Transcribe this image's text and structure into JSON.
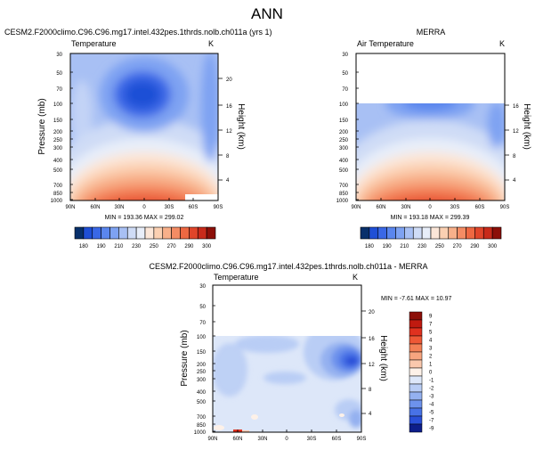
{
  "figure": {
    "title": "ANN",
    "colors": {
      "frame": "#000000",
      "background": "#ffffff"
    }
  },
  "chart_data": [
    {
      "type": "heatmap",
      "panel": "model",
      "title": "CESM2.F2000climo.C96.C96.mg17.intel.432pes.1thrds.nolb.ch011a (yrs 1)",
      "left_label": "Temperature",
      "units": "K",
      "xlabel": "",
      "ylabel": "Pressure (mb)",
      "ylabel_right": "Height (km)",
      "x_ticks": [
        "90N",
        "60N",
        "30N",
        "0",
        "30S",
        "60S",
        "90S"
      ],
      "y_ticks": [
        "30",
        "50",
        "70",
        "100",
        "150",
        "200",
        "250",
        "300",
        "400",
        "500",
        "700",
        "850",
        "1000"
      ],
      "y_right_ticks": [
        "4",
        "8",
        "12",
        "16",
        "20"
      ],
      "xlim": [
        90,
        -90
      ],
      "ylim": [
        1000,
        30
      ],
      "stats": "MIN = 193.36   MAX = 299.02",
      "min": 193.36,
      "max": 299.02
    },
    {
      "type": "heatmap",
      "panel": "obs",
      "title": "MERRA",
      "left_label": "Air Temperature",
      "units": "K",
      "xlabel": "",
      "ylabel": "",
      "ylabel_right": "Height (km)",
      "x_ticks": [
        "90N",
        "60N",
        "30N",
        "0",
        "30S",
        "60S",
        "90S"
      ],
      "y_right_ticks": [
        "4",
        "8",
        "12",
        "16"
      ],
      "xlim": [
        90,
        -90
      ],
      "ylim": [
        1000,
        30
      ],
      "data_top_mb": 100,
      "stats": "MIN = 193.18   MAX = 299.39",
      "min": 193.18,
      "max": 299.39
    },
    {
      "type": "heatmap",
      "panel": "difference",
      "title": "CESM2.F2000climo.C96.C96.mg17.intel.432pes.1thrds.nolb.ch011a - MERRA",
      "left_label": "Temperature",
      "units": "K",
      "xlabel": "",
      "ylabel": "Pressure (mb)",
      "ylabel_right": "Height (km)",
      "x_ticks": [
        "90N",
        "60N",
        "30N",
        "0",
        "30S",
        "60S",
        "90S"
      ],
      "y_ticks": [
        "30",
        "50",
        "70",
        "100",
        "150",
        "200",
        "250",
        "300",
        "400",
        "500",
        "700",
        "850",
        "1000"
      ],
      "y_right_ticks": [
        "4",
        "8",
        "12",
        "16",
        "20"
      ],
      "xlim": [
        90,
        -90
      ],
      "ylim": [
        1000,
        30
      ],
      "data_top_mb": 100,
      "stats": "MIN = -7.61   MAX = 10.97",
      "min": -7.61,
      "max": 10.97
    }
  ],
  "colorbars": {
    "temperature": {
      "labels": [
        "180",
        "190",
        "210",
        "230",
        "250",
        "270",
        "290",
        "300"
      ],
      "colors": [
        "#08306b",
        "#1f4fd6",
        "#3a68e6",
        "#5a86ee",
        "#7ea2f2",
        "#a8c0f4",
        "#cfdcf6",
        "#e8eef9",
        "#fbe6d8",
        "#fbd0b2",
        "#f8b08a",
        "#f48c64",
        "#ee6842",
        "#e0452a",
        "#c82a1a",
        "#8c0f08"
      ]
    },
    "difference": {
      "labels": [
        "9",
        "7",
        "5",
        "4",
        "3",
        "2",
        "1",
        "0",
        "-1",
        "-2",
        "-3",
        "-4",
        "-5",
        "-7",
        "-9"
      ],
      "colors": [
        "#8c0f08",
        "#c01a10",
        "#e0311f",
        "#ee5836",
        "#f38056",
        "#f7a57f",
        "#fac8ad",
        "#fdf1e8",
        "#dde7f9",
        "#b9cdf5",
        "#94b1f0",
        "#6d92ec",
        "#4872e6",
        "#2a50d8",
        "#0d1e8a"
      ]
    }
  }
}
